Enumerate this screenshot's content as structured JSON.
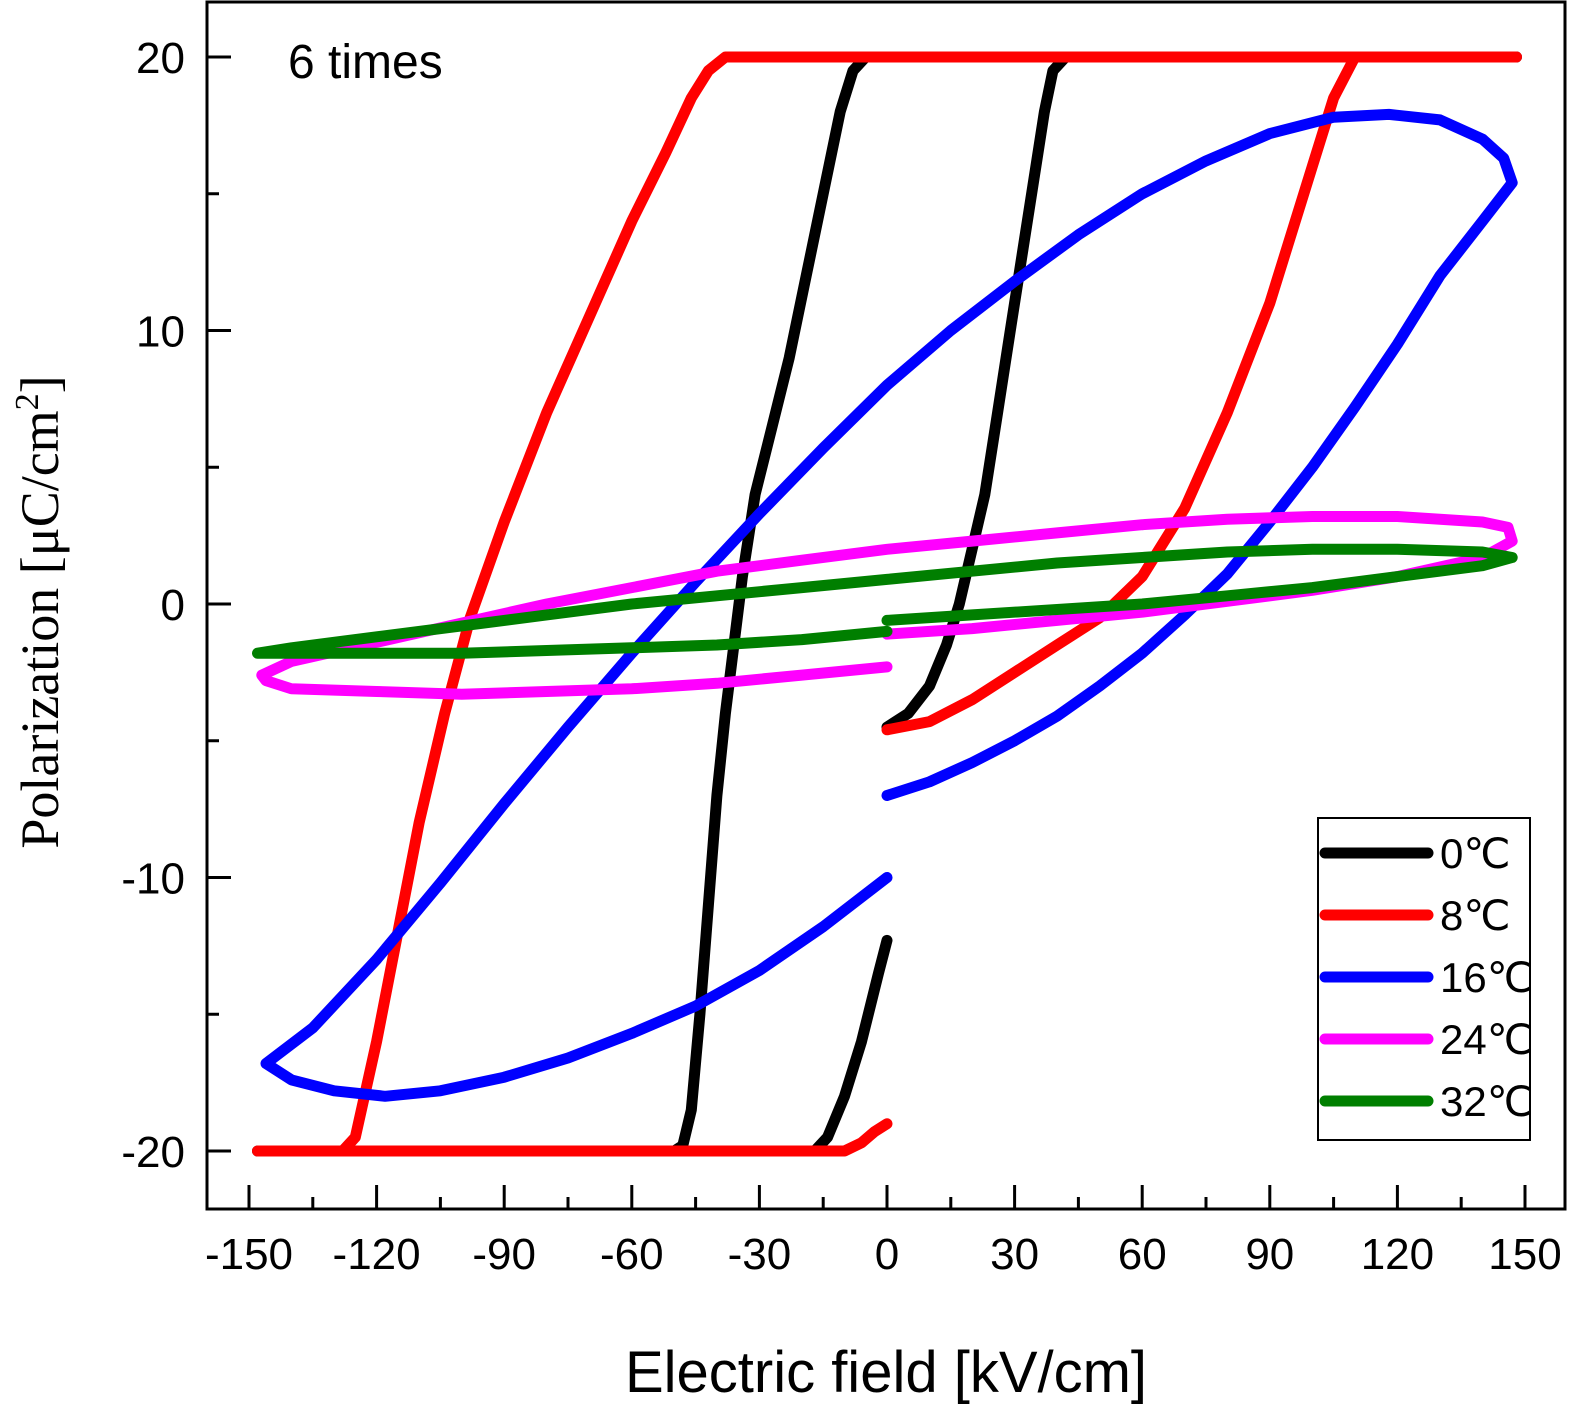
{
  "chart_data": {
    "type": "line",
    "title": "",
    "annotation": "6 times",
    "xlabel": "Electric field [kV/cm]",
    "ylabel_main": "Polarization [μC/cm",
    "ylabel_sup": "2",
    "ylabel_end": "]",
    "xlim": [
      -160,
      160
    ],
    "ylim": [
      -22,
      22
    ],
    "xticks": [
      -150,
      -120,
      -90,
      -60,
      -30,
      0,
      30,
      60,
      90,
      120,
      150
    ],
    "yticks": [
      -20,
      -10,
      0,
      10,
      20
    ],
    "grid": false,
    "legend_position": "bottom-right",
    "series": [
      {
        "name": "0℃",
        "color": "#000000",
        "points": [
          [
            0,
            -4.5
          ],
          [
            5,
            -4.0
          ],
          [
            10,
            -3.0
          ],
          [
            14,
            -1.5
          ],
          [
            17,
            0
          ],
          [
            20,
            2
          ],
          [
            23,
            4
          ],
          [
            26,
            7
          ],
          [
            29,
            10
          ],
          [
            32,
            13
          ],
          [
            35,
            16
          ],
          [
            37,
            18
          ],
          [
            39,
            19.5
          ],
          [
            42,
            20
          ],
          [
            45,
            20
          ],
          [
            100,
            20
          ],
          [
            148,
            20
          ],
          [
            148,
            20
          ],
          [
            -5,
            20
          ],
          [
            -8,
            19.5
          ],
          [
            -11,
            18
          ],
          [
            -15,
            15
          ],
          [
            -19,
            12
          ],
          [
            -23,
            9
          ],
          [
            -27,
            6.5
          ],
          [
            -31,
            4
          ],
          [
            -34,
            1
          ],
          [
            -36,
            -1.5
          ],
          [
            -38,
            -4
          ],
          [
            -40,
            -7
          ],
          [
            -42,
            -11
          ],
          [
            -44,
            -15
          ],
          [
            -46,
            -18.5
          ],
          [
            -48,
            -19.8
          ],
          [
            -50,
            -20
          ],
          [
            -100,
            -20
          ],
          [
            -148,
            -20
          ],
          [
            -17,
            -20
          ],
          [
            -14,
            -19.5
          ],
          [
            -10,
            -18
          ],
          [
            -6,
            -16
          ],
          [
            -2,
            -13.5
          ],
          [
            0,
            -12.3
          ]
        ]
      },
      {
        "name": "8℃",
        "color": "#ff0000",
        "points": [
          [
            0,
            -4.6
          ],
          [
            10,
            -4.3
          ],
          [
            20,
            -3.5
          ],
          [
            30,
            -2.5
          ],
          [
            40,
            -1.5
          ],
          [
            50,
            -0.5
          ],
          [
            60,
            1
          ],
          [
            70,
            3.5
          ],
          [
            80,
            7
          ],
          [
            90,
            11
          ],
          [
            100,
            16
          ],
          [
            105,
            18.5
          ],
          [
            110,
            20
          ],
          [
            130,
            20
          ],
          [
            148,
            20
          ],
          [
            -38,
            20
          ],
          [
            -42,
            19.5
          ],
          [
            -46,
            18.5
          ],
          [
            -52,
            16.5
          ],
          [
            -60,
            14
          ],
          [
            -70,
            10.5
          ],
          [
            -80,
            7
          ],
          [
            -90,
            3
          ],
          [
            -98,
            -0.5
          ],
          [
            -104,
            -4
          ],
          [
            -110,
            -8
          ],
          [
            -115,
            -12
          ],
          [
            -120,
            -16
          ],
          [
            -125,
            -19.5
          ],
          [
            -128,
            -20
          ],
          [
            -148,
            -20
          ],
          [
            -10,
            -20
          ],
          [
            -6,
            -19.7
          ],
          [
            -3,
            -19.3
          ],
          [
            0,
            -19
          ]
        ]
      },
      {
        "name": "16℃",
        "color": "#0000ff",
        "points": [
          [
            0,
            -7
          ],
          [
            10,
            -6.5
          ],
          [
            20,
            -5.8
          ],
          [
            30,
            -5
          ],
          [
            40,
            -4.1
          ],
          [
            50,
            -3
          ],
          [
            60,
            -1.8
          ],
          [
            70,
            -0.4
          ],
          [
            80,
            1.1
          ],
          [
            90,
            3
          ],
          [
            100,
            5
          ],
          [
            110,
            7.2
          ],
          [
            120,
            9.5
          ],
          [
            130,
            12
          ],
          [
            140,
            14
          ],
          [
            147,
            15.4
          ],
          [
            145,
            16.3
          ],
          [
            140,
            17
          ],
          [
            130,
            17.7
          ],
          [
            118,
            17.9
          ],
          [
            105,
            17.8
          ],
          [
            90,
            17.2
          ],
          [
            75,
            16.2
          ],
          [
            60,
            15
          ],
          [
            45,
            13.5
          ],
          [
            30,
            11.8
          ],
          [
            15,
            10
          ],
          [
            0,
            8
          ],
          [
            -15,
            5.7
          ],
          [
            -30,
            3.3
          ],
          [
            -45,
            0.8
          ],
          [
            -60,
            -1.8
          ],
          [
            -75,
            -4.5
          ],
          [
            -90,
            -7.3
          ],
          [
            -105,
            -10.2
          ],
          [
            -120,
            -13
          ],
          [
            -135,
            -15.5
          ],
          [
            -146,
            -16.8
          ],
          [
            -140,
            -17.4
          ],
          [
            -130,
            -17.8
          ],
          [
            -118,
            -18
          ],
          [
            -105,
            -17.8
          ],
          [
            -90,
            -17.3
          ],
          [
            -75,
            -16.6
          ],
          [
            -60,
            -15.7
          ],
          [
            -45,
            -14.7
          ],
          [
            -30,
            -13.4
          ],
          [
            -15,
            -11.8
          ],
          [
            0,
            -10
          ]
        ]
      },
      {
        "name": "24℃",
        "color": "#ff00ff",
        "points": [
          [
            0,
            -1.1
          ],
          [
            20,
            -0.9
          ],
          [
            40,
            -0.6
          ],
          [
            60,
            -0.3
          ],
          [
            80,
            0.1
          ],
          [
            100,
            0.5
          ],
          [
            120,
            1.0
          ],
          [
            140,
            1.7
          ],
          [
            147,
            2.3
          ],
          [
            146,
            2.8
          ],
          [
            140,
            3.0
          ],
          [
            120,
            3.2
          ],
          [
            100,
            3.2
          ],
          [
            80,
            3.1
          ],
          [
            60,
            2.9
          ],
          [
            40,
            2.6
          ],
          [
            20,
            2.3
          ],
          [
            0,
            2.0
          ],
          [
            -20,
            1.6
          ],
          [
            -40,
            1.2
          ],
          [
            -60,
            0.6
          ],
          [
            -80,
            0
          ],
          [
            -100,
            -0.7
          ],
          [
            -120,
            -1.4
          ],
          [
            -140,
            -2.1
          ],
          [
            -147,
            -2.6
          ],
          [
            -146,
            -2.8
          ],
          [
            -140,
            -3.1
          ],
          [
            -120,
            -3.2
          ],
          [
            -100,
            -3.3
          ],
          [
            -80,
            -3.2
          ],
          [
            -60,
            -3.1
          ],
          [
            -40,
            -2.9
          ],
          [
            -20,
            -2.6
          ],
          [
            0,
            -2.3
          ]
        ]
      },
      {
        "name": "32℃",
        "color": "#007f00",
        "points": [
          [
            0,
            -0.6
          ],
          [
            20,
            -0.4
          ],
          [
            40,
            -0.2
          ],
          [
            60,
            0
          ],
          [
            80,
            0.3
          ],
          [
            100,
            0.6
          ],
          [
            120,
            1.0
          ],
          [
            140,
            1.4
          ],
          [
            147,
            1.7
          ],
          [
            140,
            1.9
          ],
          [
            120,
            2.0
          ],
          [
            100,
            2.0
          ],
          [
            80,
            1.9
          ],
          [
            60,
            1.7
          ],
          [
            40,
            1.5
          ],
          [
            20,
            1.2
          ],
          [
            0,
            0.9
          ],
          [
            -20,
            0.6
          ],
          [
            -40,
            0.3
          ],
          [
            -60,
            0
          ],
          [
            -80,
            -0.4
          ],
          [
            -100,
            -0.8
          ],
          [
            -120,
            -1.2
          ],
          [
            -140,
            -1.6
          ],
          [
            -148,
            -1.8
          ],
          [
            -140,
            -1.8
          ],
          [
            -120,
            -1.8
          ],
          [
            -100,
            -1.8
          ],
          [
            -80,
            -1.7
          ],
          [
            -60,
            -1.6
          ],
          [
            -40,
            -1.5
          ],
          [
            -20,
            -1.3
          ],
          [
            0,
            -1.0
          ]
        ]
      }
    ]
  }
}
